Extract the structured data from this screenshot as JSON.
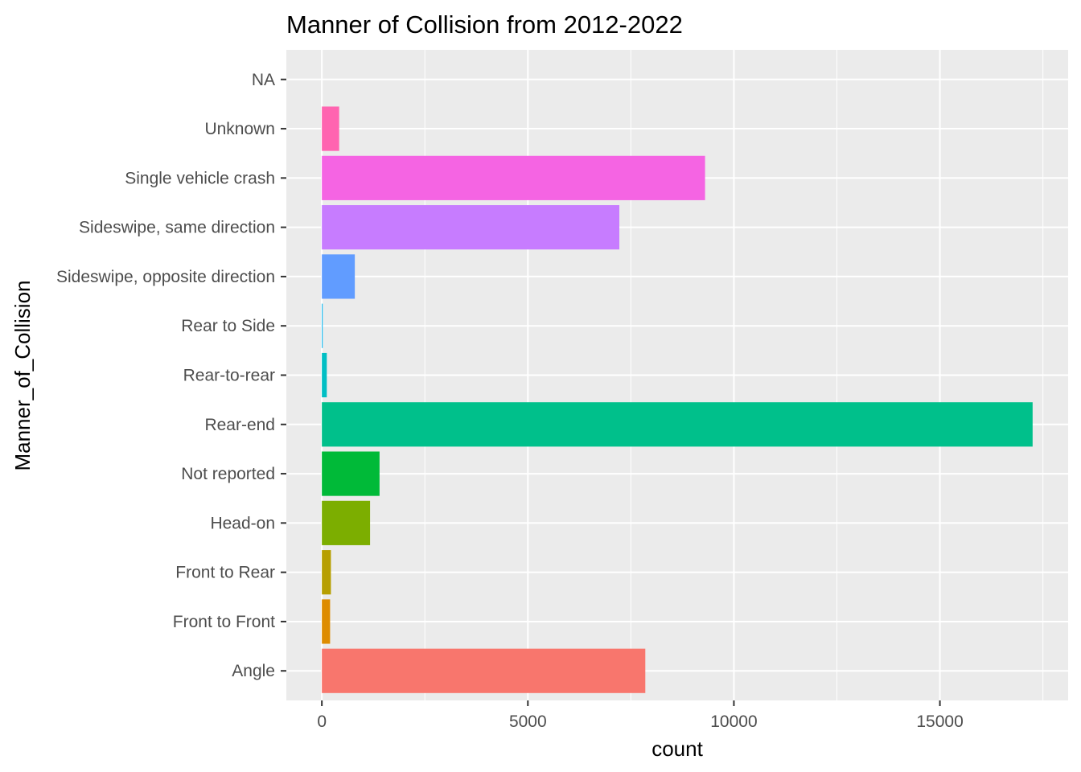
{
  "chart_data": {
    "type": "bar",
    "orientation": "horizontal",
    "title": "Manner of Collision from 2012-2022",
    "xlabel": "count",
    "ylabel": "Manner_of_Collision",
    "categories": [
      "Angle",
      "Front to Front",
      "Front to Rear",
      "Head-on",
      "Not reported",
      "Rear-end",
      "Rear-to-rear",
      "Rear to Side",
      "Sideswipe, opposite direction",
      "Sideswipe, same direction",
      "Single vehicle crash",
      "Unknown",
      "NA"
    ],
    "values": [
      7850,
      200,
      220,
      1170,
      1400,
      17250,
      120,
      20,
      800,
      7220,
      9300,
      420,
      0
    ],
    "colors": [
      "#F8766D",
      "#DE8C00",
      "#B79F00",
      "#7CAE00",
      "#00BA38",
      "#00C08B",
      "#00BFC4",
      "#00B4F0",
      "#619CFF",
      "#C77CFF",
      "#F564E3",
      "#FF64B0",
      "#FF64B0"
    ],
    "x_ticks": [
      0,
      5000,
      10000,
      15000
    ],
    "x_tick_labels": [
      "0",
      "5000",
      "10000",
      "15000"
    ],
    "xlim": [
      -862,
      18112
    ],
    "grid": true,
    "legend": "none",
    "panel_background": "#EBEBEB",
    "grid_color": "#FFFFFF"
  }
}
